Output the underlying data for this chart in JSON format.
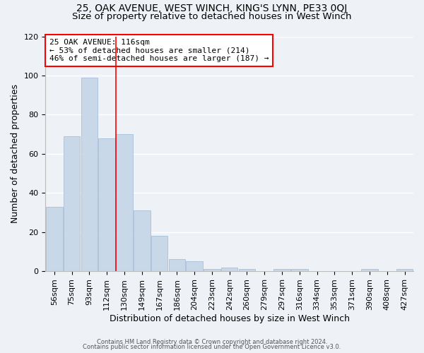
{
  "title": "25, OAK AVENUE, WEST WINCH, KING'S LYNN, PE33 0QJ",
  "subtitle": "Size of property relative to detached houses in West Winch",
  "xlabel": "Distribution of detached houses by size in West Winch",
  "ylabel": "Number of detached properties",
  "footnote1": "Contains HM Land Registry data © Crown copyright and database right 2024.",
  "footnote2": "Contains public sector information licensed under the Open Government Licence v3.0.",
  "bar_labels": [
    "56sqm",
    "75sqm",
    "93sqm",
    "112sqm",
    "130sqm",
    "149sqm",
    "167sqm",
    "186sqm",
    "204sqm",
    "223sqm",
    "242sqm",
    "260sqm",
    "279sqm",
    "297sqm",
    "316sqm",
    "334sqm",
    "353sqm",
    "371sqm",
    "390sqm",
    "408sqm",
    "427sqm"
  ],
  "bar_values": [
    33,
    69,
    99,
    68,
    70,
    31,
    18,
    6,
    5,
    1,
    2,
    1,
    0,
    1,
    1,
    0,
    0,
    0,
    1,
    0,
    1
  ],
  "bar_color": "#c8d8e8",
  "bar_edgecolor": "#a8c0d8",
  "vline_x": 3.5,
  "vline_color": "red",
  "annotation_text": "25 OAK AVENUE: 116sqm\n← 53% of detached houses are smaller (214)\n46% of semi-detached houses are larger (187) →",
  "annotation_box_color": "white",
  "annotation_box_edgecolor": "red",
  "ylim": [
    0,
    120
  ],
  "yticks": [
    0,
    20,
    40,
    60,
    80,
    100,
    120
  ],
  "bg_color": "#eef2f7",
  "grid_color": "white",
  "title_fontsize": 10,
  "subtitle_fontsize": 9.5,
  "xlabel_fontsize": 9,
  "ylabel_fontsize": 9,
  "tick_fontsize": 8,
  "annot_fontsize": 8,
  "footnote_fontsize": 6
}
